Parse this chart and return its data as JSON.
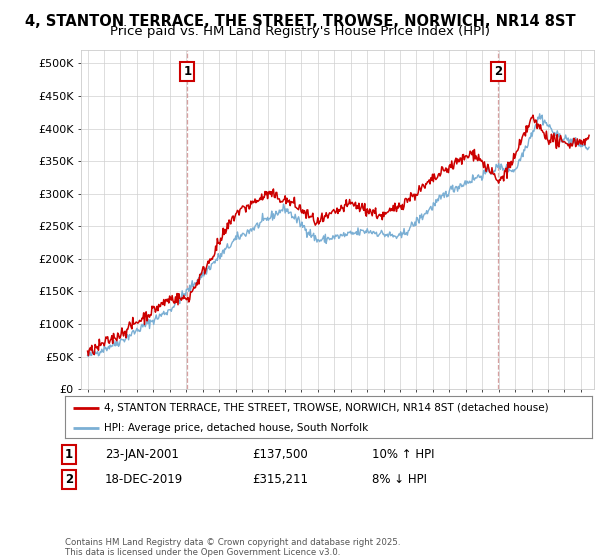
{
  "title": "4, STANTON TERRACE, THE STREET, TROWSE, NORWICH, NR14 8ST",
  "subtitle": "Price paid vs. HM Land Registry's House Price Index (HPI)",
  "legend_line1": "4, STANTON TERRACE, THE STREET, TROWSE, NORWICH, NR14 8ST (detached house)",
  "legend_line2": "HPI: Average price, detached house, South Norfolk",
  "annotation1_label": "1",
  "annotation1_date": "23-JAN-2001",
  "annotation1_price": "£137,500",
  "annotation1_hpi": "10% ↑ HPI",
  "annotation2_label": "2",
  "annotation2_date": "18-DEC-2019",
  "annotation2_price": "£315,211",
  "annotation2_hpi": "8% ↓ HPI",
  "footer": "Contains HM Land Registry data © Crown copyright and database right 2025.\nThis data is licensed under the Open Government Licence v3.0.",
  "red_color": "#cc0000",
  "blue_color": "#7bafd4",
  "vline_color": "#cc8888",
  "ylim": [
    0,
    520000
  ],
  "yticks": [
    0,
    50000,
    100000,
    150000,
    200000,
    250000,
    300000,
    350000,
    400000,
    450000,
    500000
  ],
  "ytick_labels": [
    "£0",
    "£50K",
    "£100K",
    "£150K",
    "£200K",
    "£250K",
    "£300K",
    "£350K",
    "£400K",
    "£450K",
    "£500K"
  ],
  "ann1_x": 2001.07,
  "ann2_x": 2019.97,
  "title_fontsize": 10.5,
  "subtitle_fontsize": 9.5,
  "background_color": "#ffffff",
  "xlim_left": 1994.6,
  "xlim_right": 2025.8
}
